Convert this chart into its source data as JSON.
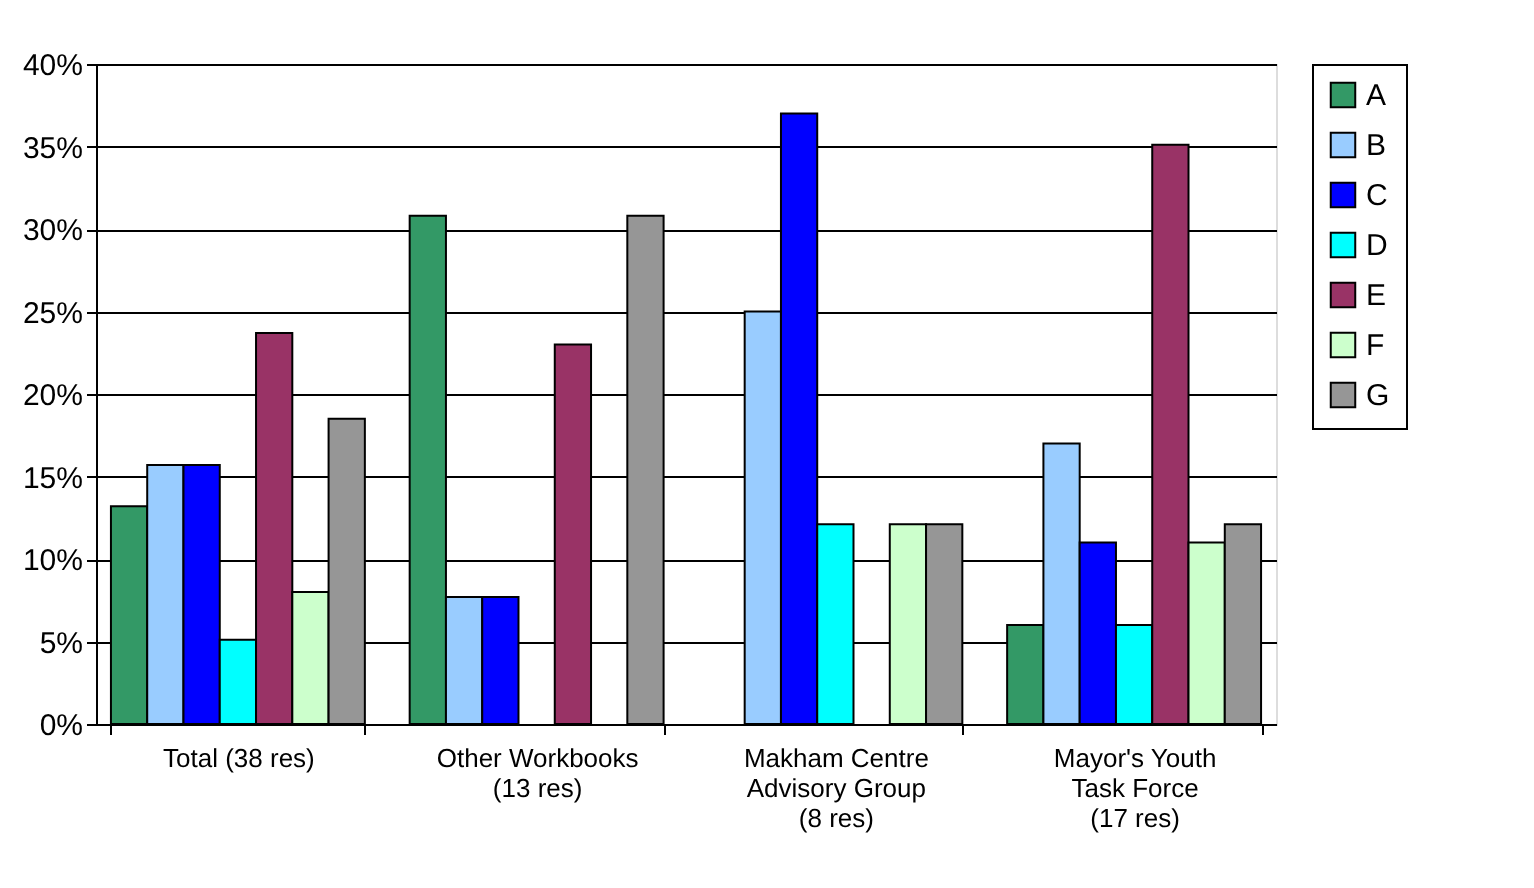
{
  "chart_data": {
    "type": "bar",
    "categories": [
      "Total (38 res)",
      "Other Workbooks\n(13 res)",
      "Makham Centre\nAdvisory Group\n(8 res)",
      "Mayor's Youth\nTask Force\n(17 res)"
    ],
    "series": [
      {
        "name": "A",
        "color": "#339966",
        "values": [
          13.2,
          30.8,
          null,
          6.0
        ]
      },
      {
        "name": "B",
        "color": "#99ccff",
        "values": [
          15.7,
          7.7,
          25.0,
          17.0
        ]
      },
      {
        "name": "C",
        "color": "#0000ff",
        "values": [
          15.7,
          7.7,
          37.0,
          11.0
        ]
      },
      {
        "name": "D",
        "color": "#00ffff",
        "values": [
          5.1,
          null,
          12.1,
          6.0
        ]
      },
      {
        "name": "E",
        "color": "#993366",
        "values": [
          23.7,
          23.0,
          null,
          35.1
        ]
      },
      {
        "name": "F",
        "color": "#ccffcc",
        "values": [
          8.0,
          null,
          12.1,
          11.0
        ]
      },
      {
        "name": "G",
        "color": "#969696",
        "values": [
          18.5,
          30.8,
          12.1,
          12.1
        ]
      }
    ],
    "ylim": [
      0,
      40
    ],
    "yticks": [
      {
        "value": 0,
        "label": "0%"
      },
      {
        "value": 5,
        "label": "5%"
      },
      {
        "value": 10,
        "label": "10%"
      },
      {
        "value": 15,
        "label": "15%"
      },
      {
        "value": 20,
        "label": "20%"
      },
      {
        "value": 25,
        "label": "25%"
      },
      {
        "value": 30,
        "label": "30%"
      },
      {
        "value": 35,
        "label": "35%"
      },
      {
        "value": 40,
        "label": "40%"
      }
    ],
    "grid": "y",
    "legend": "right"
  }
}
